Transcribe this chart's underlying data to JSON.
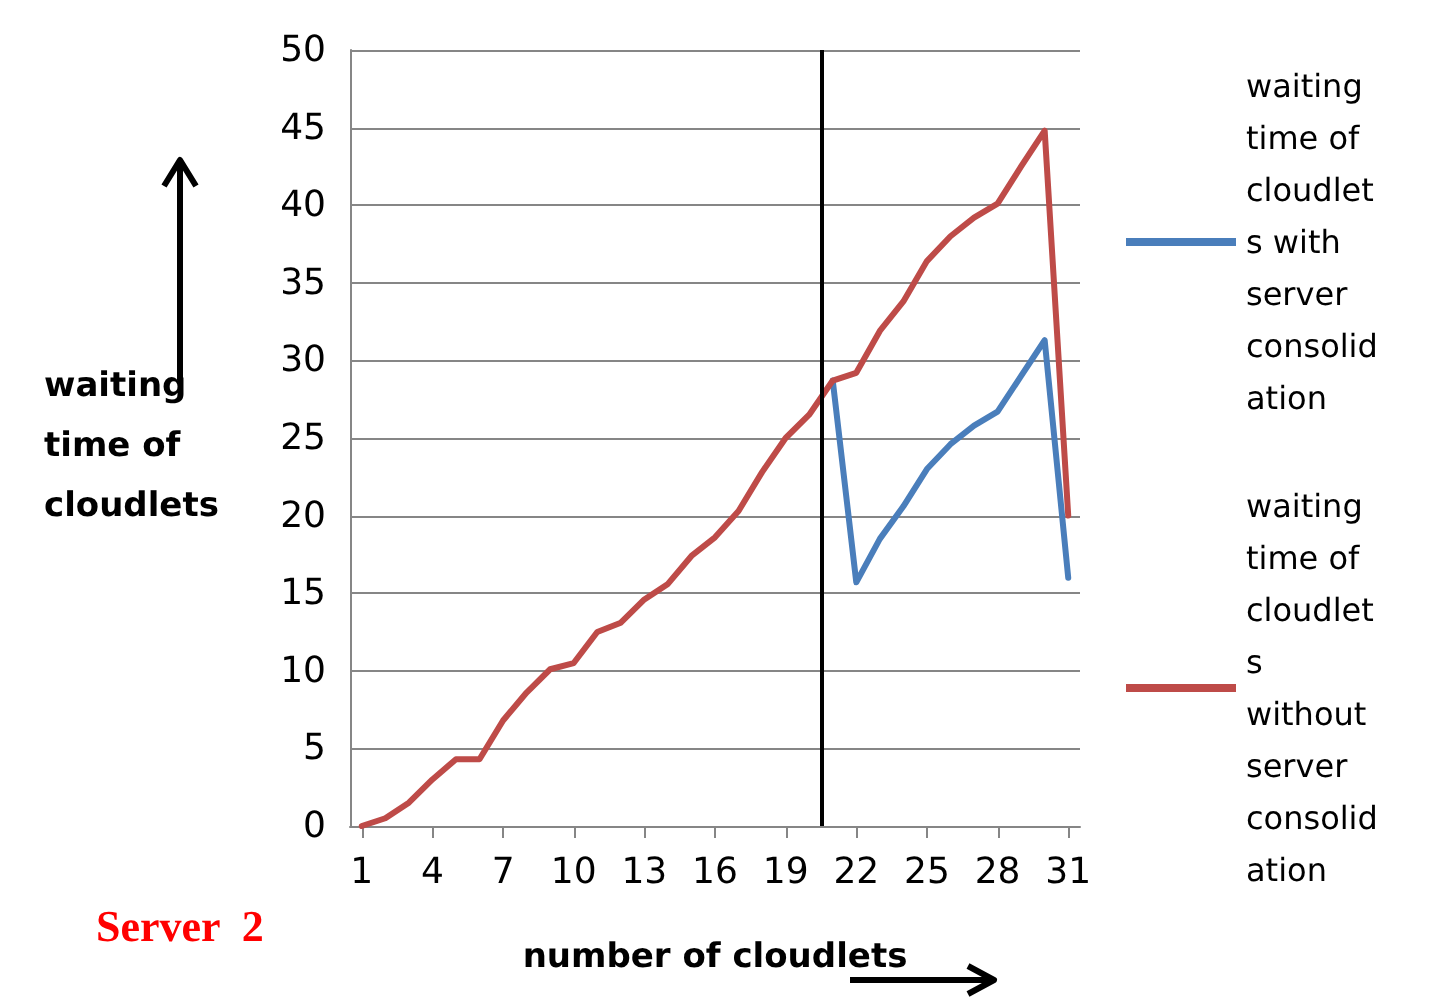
{
  "chart_data": {
    "type": "line",
    "xlabel": "number of cloudlets",
    "ylabel": "waiting time of cloudlets",
    "annotations": [
      "Server  2"
    ],
    "x": [
      1,
      2,
      3,
      4,
      5,
      6,
      7,
      8,
      9,
      10,
      11,
      12,
      13,
      14,
      15,
      16,
      17,
      18,
      19,
      20,
      21,
      22,
      23,
      24,
      25,
      26,
      27,
      28,
      29,
      30,
      31
    ],
    "xlim": [
      0.5,
      31.5
    ],
    "xticks": [
      1,
      4,
      7,
      10,
      13,
      16,
      19,
      22,
      25,
      28,
      31
    ],
    "ylim": [
      0,
      50
    ],
    "yticks": [
      0,
      5,
      10,
      15,
      20,
      25,
      30,
      35,
      40,
      45,
      50
    ],
    "grid": "y",
    "legend": "right",
    "marker": "none",
    "line_style": "solid",
    "ref_lines": [
      {
        "axis": "x",
        "value": 20.5,
        "color": "#000000"
      }
    ],
    "series": [
      {
        "name": "waiting time of cloudlets with server consolidation",
        "color": "#4a7ebb",
        "values": [
          null,
          null,
          null,
          null,
          null,
          null,
          null,
          null,
          null,
          null,
          null,
          null,
          null,
          null,
          null,
          null,
          null,
          null,
          null,
          null,
          28.7,
          15.7,
          18.5,
          20.6,
          23,
          24.6,
          25.8,
          26.7,
          29,
          31.3,
          16
        ]
      },
      {
        "name": "waiting time of cloudlets without server consolidation",
        "color": "#be4b48",
        "values": [
          0,
          0.5,
          1.5,
          3,
          4.3,
          4.3,
          6.8,
          8.6,
          10.1,
          10.5,
          12.5,
          13.1,
          14.6,
          15.6,
          17.4,
          18.6,
          20.3,
          22.8,
          25,
          26.5,
          28.7,
          29.2,
          31.9,
          33.8,
          36.4,
          38,
          39.2,
          40.1,
          42.5,
          44.8,
          20
        ]
      }
    ]
  }
}
